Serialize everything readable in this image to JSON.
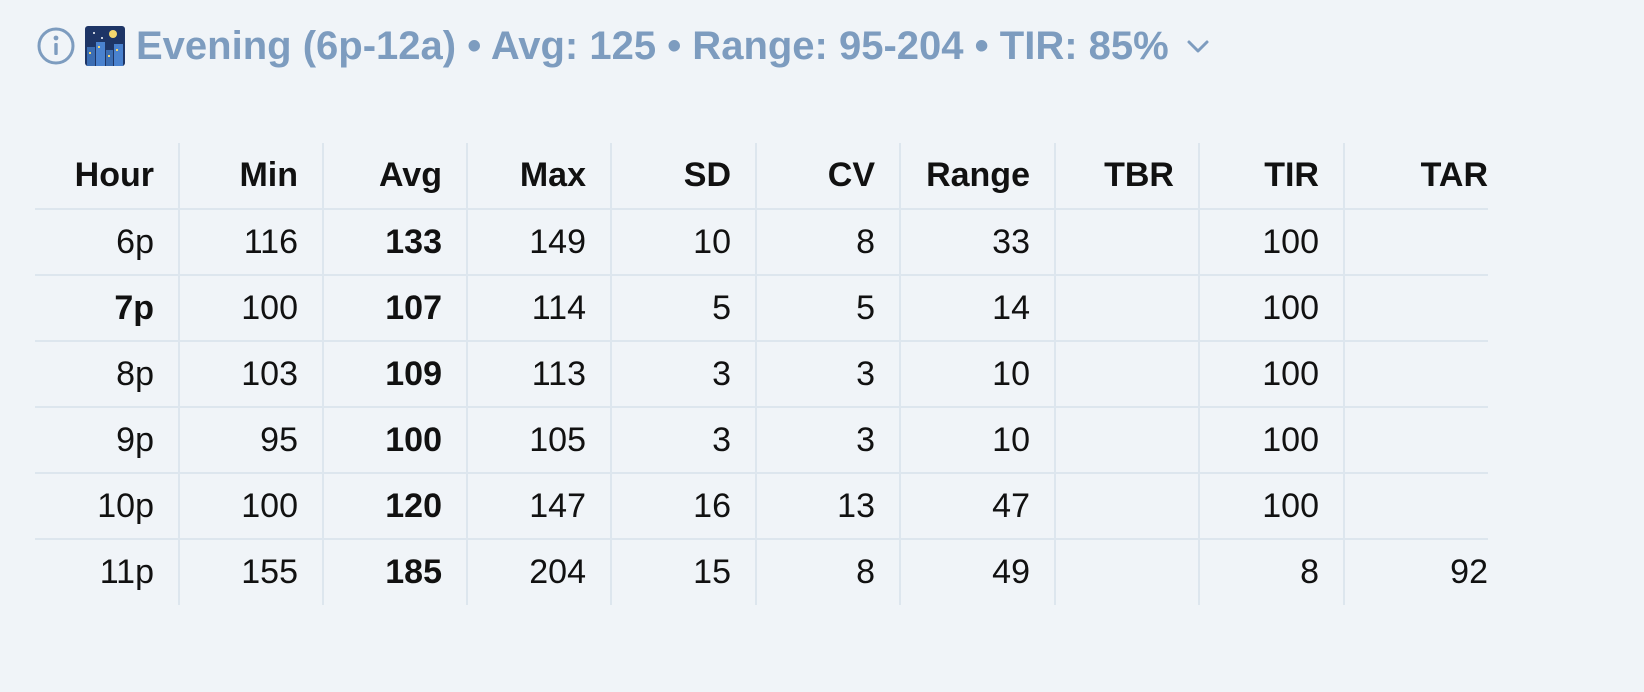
{
  "header": {
    "title": "Evening (6p-12a) • Avg: 125 • Range: 95-204 • TIR: 85%"
  },
  "table": {
    "columns": [
      "Hour",
      "Min",
      "Avg",
      "Max",
      "SD",
      "CV",
      "Range",
      "TBR",
      "TIR",
      "TAR"
    ],
    "rows": [
      [
        "6p",
        116,
        133,
        149,
        10,
        8,
        33,
        null,
        100,
        null
      ],
      [
        "7p",
        100,
        107,
        114,
        5,
        5,
        14,
        null,
        100,
        null
      ],
      [
        "8p",
        103,
        109,
        113,
        3,
        3,
        10,
        null,
        100,
        null
      ],
      [
        "9p",
        95,
        100,
        105,
        3,
        3,
        10,
        null,
        100,
        null
      ],
      [
        "10p",
        100,
        120,
        147,
        16,
        13,
        47,
        null,
        100,
        null
      ],
      [
        "11p",
        155,
        185,
        204,
        15,
        8,
        49,
        null,
        8,
        92
      ]
    ]
  }
}
